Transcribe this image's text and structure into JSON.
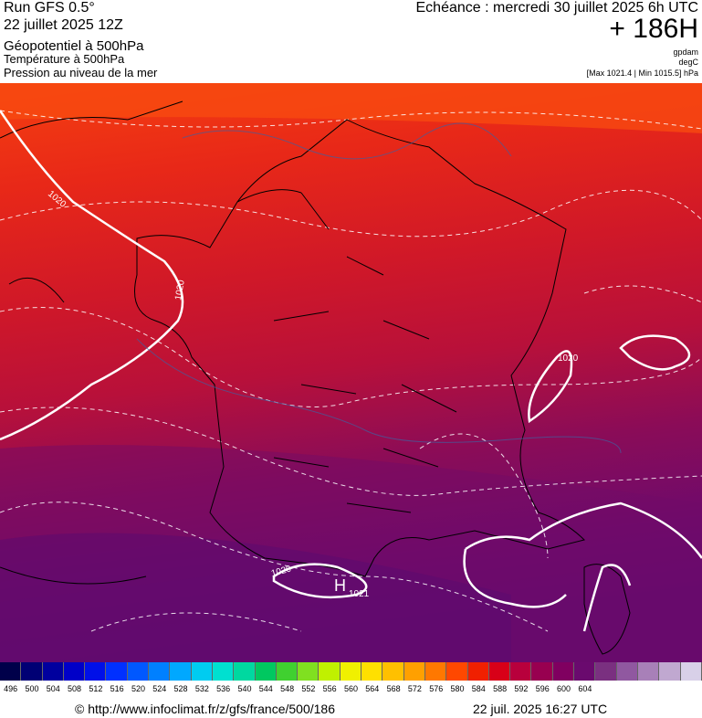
{
  "header": {
    "run": "Run GFS 0.5°",
    "date": "22 juillet 2025 12Z",
    "field1": "Géopotentiel à 500hPa",
    "field2": "Température à 500hPa",
    "field3": "Pression au niveau de la mer",
    "echeance": "Echéance : mercredi 30 juillet 2025 6h UTC",
    "hour": "+ 186H",
    "unit1": "gpdam",
    "unit2": "degC",
    "maxmin": "[Max 1021.4 | Min 1015.5] hPa"
  },
  "map": {
    "labels": {
      "iso_1020_nw": "1020",
      "iso_1020_brittany": "1020",
      "iso_1020_alps": "1020",
      "iso_1020_sw": "1020",
      "high_marker": "H",
      "high_value": "1021"
    },
    "colors": {
      "north": "#f03a10",
      "center": "#b8103a",
      "south": "#6a0a6e",
      "isobar": "#ffffff",
      "border": "#000000"
    }
  },
  "legend": {
    "ticks": [
      "496",
      "500",
      "504",
      "508",
      "512",
      "516",
      "520",
      "524",
      "528",
      "532",
      "536",
      "540",
      "544",
      "548",
      "552",
      "556",
      "560",
      "564",
      "568",
      "572",
      "576",
      "580",
      "584",
      "588",
      "592",
      "596",
      "600",
      "604"
    ],
    "colors": [
      "#00004a",
      "#000074",
      "#00009e",
      "#0000c8",
      "#0010e8",
      "#0030ff",
      "#0058ff",
      "#0080ff",
      "#00a8ff",
      "#00ccf0",
      "#00e0d0",
      "#00d8a0",
      "#00c860",
      "#40d030",
      "#80e020",
      "#c0f000",
      "#f0f000",
      "#ffe000",
      "#ffc000",
      "#ffa000",
      "#ff7800",
      "#ff4800",
      "#f02000",
      "#d80018",
      "#b8003c",
      "#980050",
      "#800060",
      "#6a0a6e",
      "#7a3080",
      "#9058a0",
      "#a880b8",
      "#c0a8d0",
      "#d8d0e8"
    ]
  },
  "footer": {
    "url": "© http://www.infoclimat.fr/z/gfs/france/500/186",
    "timestamp": "22 juil. 2025 16:27 UTC"
  }
}
